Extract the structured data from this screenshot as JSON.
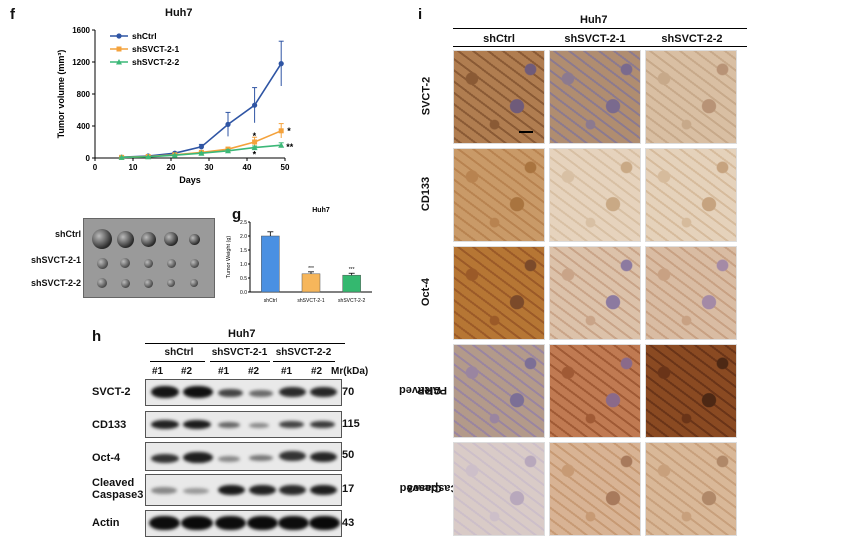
{
  "panel_f": {
    "letter": "f",
    "title": "Huh7",
    "ylabel": "Tumor volume (mm³)",
    "xlabel": "Days",
    "xticks": [
      "0",
      "10",
      "20",
      "30",
      "40",
      "50"
    ],
    "yticks": [
      "0",
      "400",
      "800",
      "1200",
      "1600"
    ],
    "legend": [
      "shCtrl",
      "shSVCT-2-1",
      "shSVCT-2-2"
    ],
    "annotations": [
      "*",
      "*",
      "*",
      "**"
    ]
  },
  "panel_g": {
    "letter": "g",
    "title": "Huh7",
    "ylabel": "Tumor Weight (g)",
    "yticks": [
      "0.0",
      "0.5",
      "1.0",
      "1.5",
      "2.0",
      "2.5"
    ],
    "categories": [
      "shCtrl",
      "shSVCT-2-1",
      "shSVCT-2-2"
    ],
    "sig": [
      "***",
      "***"
    ]
  },
  "tumor_photo": {
    "labels": [
      "shCtrl",
      "shSVCT-2-1",
      "shSVCT-2-2"
    ]
  },
  "panel_h": {
    "letter": "h",
    "title": "Huh7",
    "groups": [
      "shCtrl",
      "shSVCT-2-1",
      "shSVCT-2-2"
    ],
    "lanes": [
      "#1",
      "#2",
      "#1",
      "#2",
      "#1",
      "#2"
    ],
    "mr_header": "Mr(kDa)",
    "rows": [
      {
        "label": "SVCT-2",
        "mr": "70"
      },
      {
        "label": "CD133",
        "mr": "115"
      },
      {
        "label": "Oct-4",
        "mr": "50"
      },
      {
        "label_line1": "Cleaved",
        "label_line2": "Caspase3",
        "mr": "17"
      },
      {
        "label": "Actin",
        "mr": "43"
      }
    ]
  },
  "panel_i": {
    "letter": "i",
    "title": "Huh7",
    "columns": [
      "shCtrl",
      "shSVCT-2-1",
      "shSVCT-2-2"
    ],
    "rows": [
      {
        "label": "SVCT-2"
      },
      {
        "label": "CD133"
      },
      {
        "label": "Oct-4"
      },
      {
        "label_line1": "Cleaved",
        "label_line2": "PARP"
      },
      {
        "label_line1": "Cleaved",
        "label_line2": "Caspase3"
      }
    ]
  },
  "chart_data": [
    {
      "type": "line",
      "title": "Huh7",
      "xlabel": "Days",
      "ylabel": "Tumor volume (mm³)",
      "xlim": [
        0,
        50
      ],
      "ylim": [
        0,
        1600
      ],
      "x": [
        7,
        14,
        21,
        28,
        35,
        42,
        49
      ],
      "series": [
        {
          "name": "shCtrl",
          "values": [
            10,
            25,
            60,
            140,
            420,
            660,
            1180
          ],
          "errors": [
            3,
            5,
            10,
            30,
            150,
            220,
            280
          ],
          "color": "#2f55a4"
        },
        {
          "name": "shSVCT-2-1",
          "values": [
            8,
            18,
            40,
            70,
            110,
            200,
            340
          ],
          "errors": [
            2,
            4,
            6,
            12,
            25,
            60,
            90
          ],
          "color": "#f4a23c"
        },
        {
          "name": "shSVCT-2-2",
          "values": [
            8,
            15,
            35,
            60,
            90,
            130,
            160
          ],
          "errors": [
            2,
            3,
            5,
            10,
            15,
            20,
            30
          ],
          "color": "#3cb878"
        }
      ],
      "legend": "top-left"
    },
    {
      "type": "bar",
      "title": "Huh7",
      "ylabel": "Tumor Weight (g)",
      "categories": [
        "shCtrl",
        "shSVCT-2-1",
        "shSVCT-2-2"
      ],
      "values": [
        2.0,
        0.65,
        0.6
      ],
      "errors": [
        0.15,
        0.07,
        0.07
      ],
      "colors": [
        "#4a90e2",
        "#f6b65b",
        "#34b86f"
      ],
      "ylim": [
        0,
        2.5
      ]
    }
  ]
}
